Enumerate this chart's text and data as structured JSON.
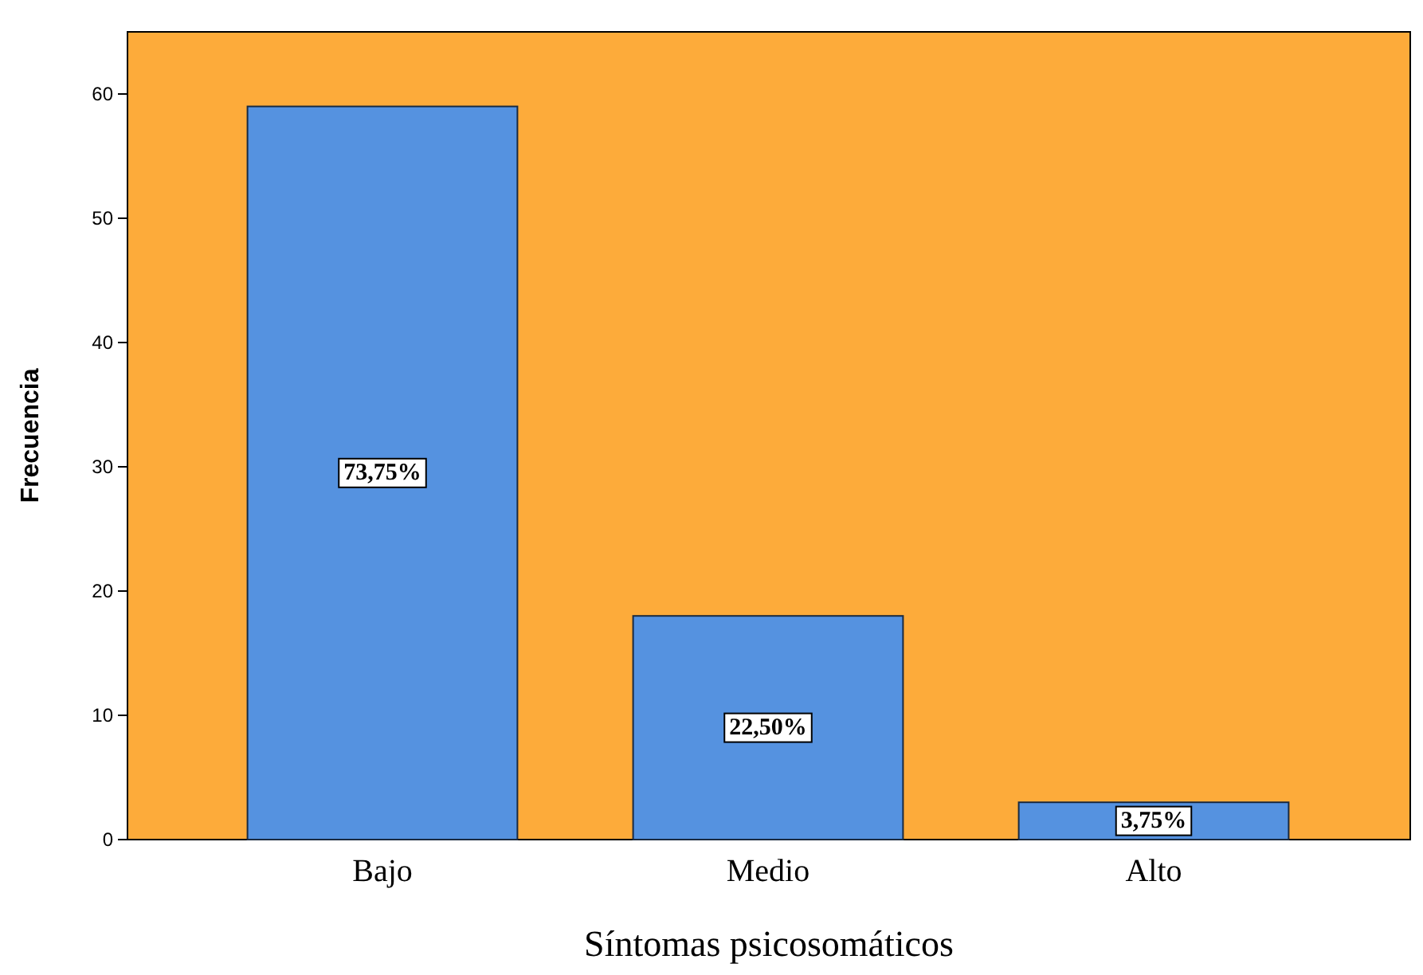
{
  "chart_data": {
    "type": "bar",
    "xlabel": "Síntomas psicosomáticos",
    "ylabel": "Frecuencia",
    "categories": [
      "Bajo",
      "Medio",
      "Alto"
    ],
    "series": [
      {
        "color": "#5592e0",
        "values": [
          59,
          18,
          3
        ]
      }
    ],
    "value_labels": [
      "73,75%",
      "22,50%",
      "3,75%"
    ],
    "ylim": [
      0,
      65
    ],
    "yticks": [
      0,
      10,
      20,
      30,
      40,
      50,
      60
    ],
    "grid": false
  }
}
